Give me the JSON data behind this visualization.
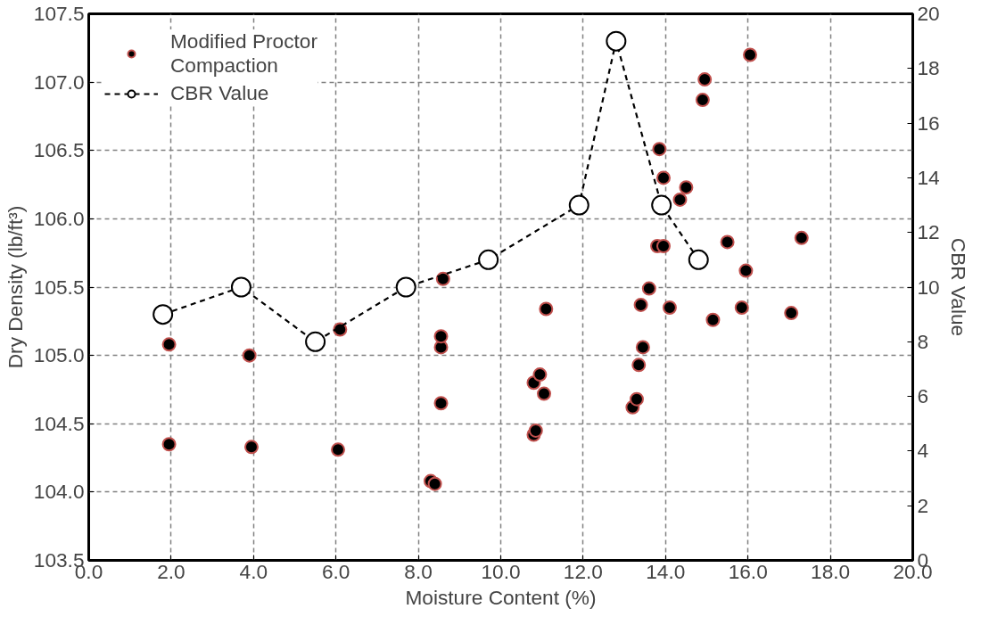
{
  "chart_data": {
    "type": "scatter",
    "xlabel": "Moisture Content (%)",
    "ylabel": "Dry Density (lb/ft³)",
    "y2label": "CBR Value",
    "xlim": [
      0,
      20
    ],
    "xticks": [
      {
        "value": 0,
        "label": "0.0"
      },
      {
        "value": 2,
        "label": "2.0"
      },
      {
        "value": 4,
        "label": "4.0"
      },
      {
        "value": 6,
        "label": "6.0"
      },
      {
        "value": 8,
        "label": "8.0"
      },
      {
        "value": 10,
        "label": "10.0"
      },
      {
        "value": 12,
        "label": "12.0"
      },
      {
        "value": 14,
        "label": "14.0"
      },
      {
        "value": 16,
        "label": "16.0"
      },
      {
        "value": 18,
        "label": "18.0"
      },
      {
        "value": 20,
        "label": "20.0"
      }
    ],
    "ylim": [
      103.5,
      107.5
    ],
    "yticks": [
      103.5,
      {
        "value": 104,
        "label": "104.0"
      },
      104.5,
      {
        "value": 105,
        "label": "105.0"
      },
      105.5,
      {
        "value": 106,
        "label": "106.0"
      },
      106.5,
      {
        "value": 107,
        "label": "107.0"
      },
      107.5
    ],
    "y2lim": [
      0,
      20
    ],
    "y2ticks": [
      0,
      2,
      4,
      6,
      8,
      10,
      12,
      14,
      16,
      18,
      20
    ],
    "grid": true,
    "legend": "top left",
    "series": [
      {
        "name": "Modified Proctor Compaction",
        "marker": "circle",
        "color": "#000000",
        "x": [
          1.95,
          1.95,
          3.9,
          3.95,
          6.05,
          6.1,
          8.3,
          8.4,
          8.55,
          8.55,
          8.55,
          8.6,
          10.8,
          10.85,
          10.8,
          10.95,
          11.05,
          11.1,
          13.2,
          13.3,
          13.35,
          13.4,
          13.45,
          13.6,
          13.8,
          13.85,
          13.95,
          13.95,
          14.1,
          14.35,
          14.5,
          14.9,
          14.95,
          15.15,
          15.5,
          15.85,
          15.95,
          16.05,
          17.05,
          17.3
        ],
        "values": [
          105.08,
          104.35,
          105.0,
          104.33,
          104.31,
          105.19,
          104.08,
          104.06,
          104.65,
          105.06,
          105.14,
          105.56,
          104.42,
          104.45,
          104.8,
          104.86,
          104.72,
          105.34,
          104.62,
          104.68,
          104.93,
          105.37,
          105.06,
          105.49,
          105.8,
          106.51,
          106.3,
          105.8,
          105.35,
          106.14,
          106.23,
          106.87,
          107.02,
          105.26,
          105.83,
          105.35,
          105.62,
          107.2,
          105.31,
          105.86
        ]
      },
      {
        "name": "CBR Value",
        "type": "line",
        "axis": "y2",
        "marker": "circle",
        "line_style": "dashed",
        "color": "#000000",
        "x": [
          1.8,
          3.7,
          5.5,
          7.7,
          9.7,
          11.9,
          12.8,
          13.9,
          14.8
        ],
        "values": [
          9,
          10,
          8,
          10,
          11,
          13,
          19,
          13,
          11
        ]
      }
    ]
  }
}
